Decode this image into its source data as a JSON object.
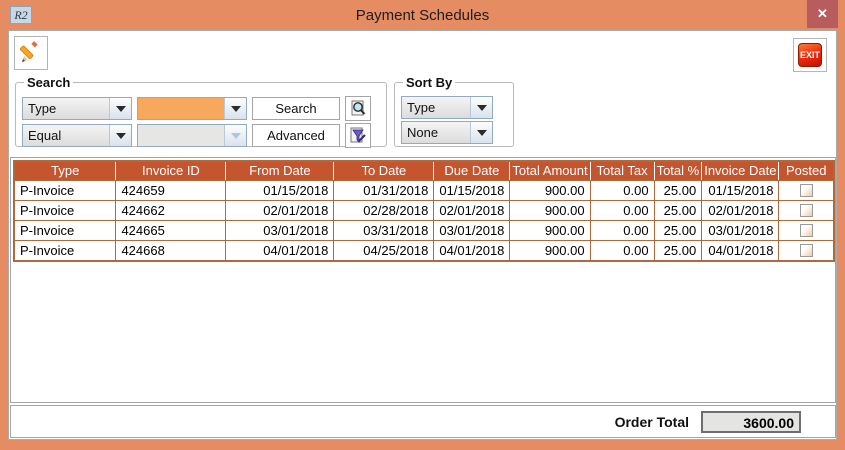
{
  "window": {
    "title": "Payment Schedules",
    "app_icon_text": "R2",
    "close_icon": "✕"
  },
  "toolbar": {
    "exit_label": "EXIT"
  },
  "search": {
    "legend": "Search",
    "field_value": "Type",
    "operator_value": "Equal",
    "value_input": "",
    "value_input2": "",
    "search_button": "Search",
    "advanced_button": "Advanced"
  },
  "sort": {
    "legend": "Sort By",
    "primary_value": "Type",
    "secondary_value": "None"
  },
  "table": {
    "columns": [
      {
        "key": "type",
        "label": "Type"
      },
      {
        "key": "invoice_id",
        "label": "Invoice ID"
      },
      {
        "key": "from_date",
        "label": "From Date"
      },
      {
        "key": "to_date",
        "label": "To Date"
      },
      {
        "key": "due_date",
        "label": "Due Date"
      },
      {
        "key": "total_amount",
        "label": "Total Amount"
      },
      {
        "key": "total_tax",
        "label": "Total Tax"
      },
      {
        "key": "total_pct",
        "label": "Total %"
      },
      {
        "key": "invoice_date",
        "label": "Invoice Date"
      },
      {
        "key": "posted",
        "label": "Posted"
      }
    ],
    "rows": [
      {
        "type": "P-Invoice",
        "invoice_id": "424659",
        "from_date": "01/15/2018",
        "to_date": "01/31/2018",
        "due_date": "01/15/2018",
        "total_amount": "900.00",
        "total_tax": "0.00",
        "total_pct": "25.00",
        "invoice_date": "01/15/2018",
        "posted": false
      },
      {
        "type": "P-Invoice",
        "invoice_id": "424662",
        "from_date": "02/01/2018",
        "to_date": "02/28/2018",
        "due_date": "02/01/2018",
        "total_amount": "900.00",
        "total_tax": "0.00",
        "total_pct": "25.00",
        "invoice_date": "02/01/2018",
        "posted": false
      },
      {
        "type": "P-Invoice",
        "invoice_id": "424665",
        "from_date": "03/01/2018",
        "to_date": "03/31/2018",
        "due_date": "03/01/2018",
        "total_amount": "900.00",
        "total_tax": "0.00",
        "total_pct": "25.00",
        "invoice_date": "03/01/2018",
        "posted": false
      },
      {
        "type": "P-Invoice",
        "invoice_id": "424668",
        "from_date": "04/01/2018",
        "to_date": "04/25/2018",
        "due_date": "04/01/2018",
        "total_amount": "900.00",
        "total_tax": "0.00",
        "total_pct": "25.00",
        "invoice_date": "04/01/2018",
        "posted": false
      }
    ]
  },
  "footer": {
    "order_total_label": "Order Total",
    "order_total_value": "3600.00"
  },
  "colors": {
    "titlebar": "#E68C63",
    "close_button": "#B95C5E",
    "table_header": "#C4552F",
    "grid_border": "#AD6A3C",
    "search_value_field": "#F7A85D"
  }
}
